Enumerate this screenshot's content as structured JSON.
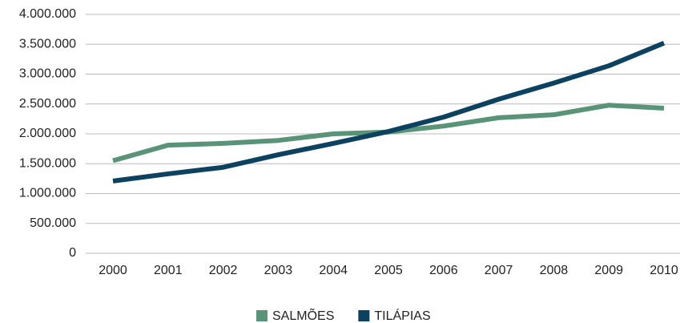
{
  "chart_data": {
    "type": "line",
    "categories": [
      "2000",
      "2001",
      "2002",
      "2003",
      "2004",
      "2005",
      "2006",
      "2007",
      "2008",
      "2009",
      "2010"
    ],
    "series": [
      {
        "name": "SALMÕES",
        "color": "#5a9478",
        "values": [
          1550000,
          1810000,
          1840000,
          1890000,
          2000000,
          2030000,
          2130000,
          2270000,
          2320000,
          2480000,
          2430000
        ]
      },
      {
        "name": "TILÁPIAS",
        "color": "#0c4260",
        "values": [
          1210000,
          1330000,
          1440000,
          1650000,
          1840000,
          2040000,
          2280000,
          2580000,
          2850000,
          3140000,
          3520000
        ]
      }
    ],
    "ylim": [
      0,
      4000000
    ],
    "yticks": [
      0,
      {
        "value": 500000,
        "label": "500.000"
      },
      {
        "value": 1000000,
        "label": "1.000.000"
      },
      {
        "value": 1500000,
        "label": "1.500.000"
      },
      {
        "value": 2000000,
        "label": "2.000.000"
      },
      {
        "value": 2500000,
        "label": "2.500.000"
      },
      {
        "value": 3000000,
        "label": "3.000.000"
      },
      {
        "value": 3500000,
        "label": "3.500.000"
      },
      {
        "value": 4000000,
        "label": "4.000.000"
      }
    ],
    "grid": true,
    "legend": "bottom"
  }
}
